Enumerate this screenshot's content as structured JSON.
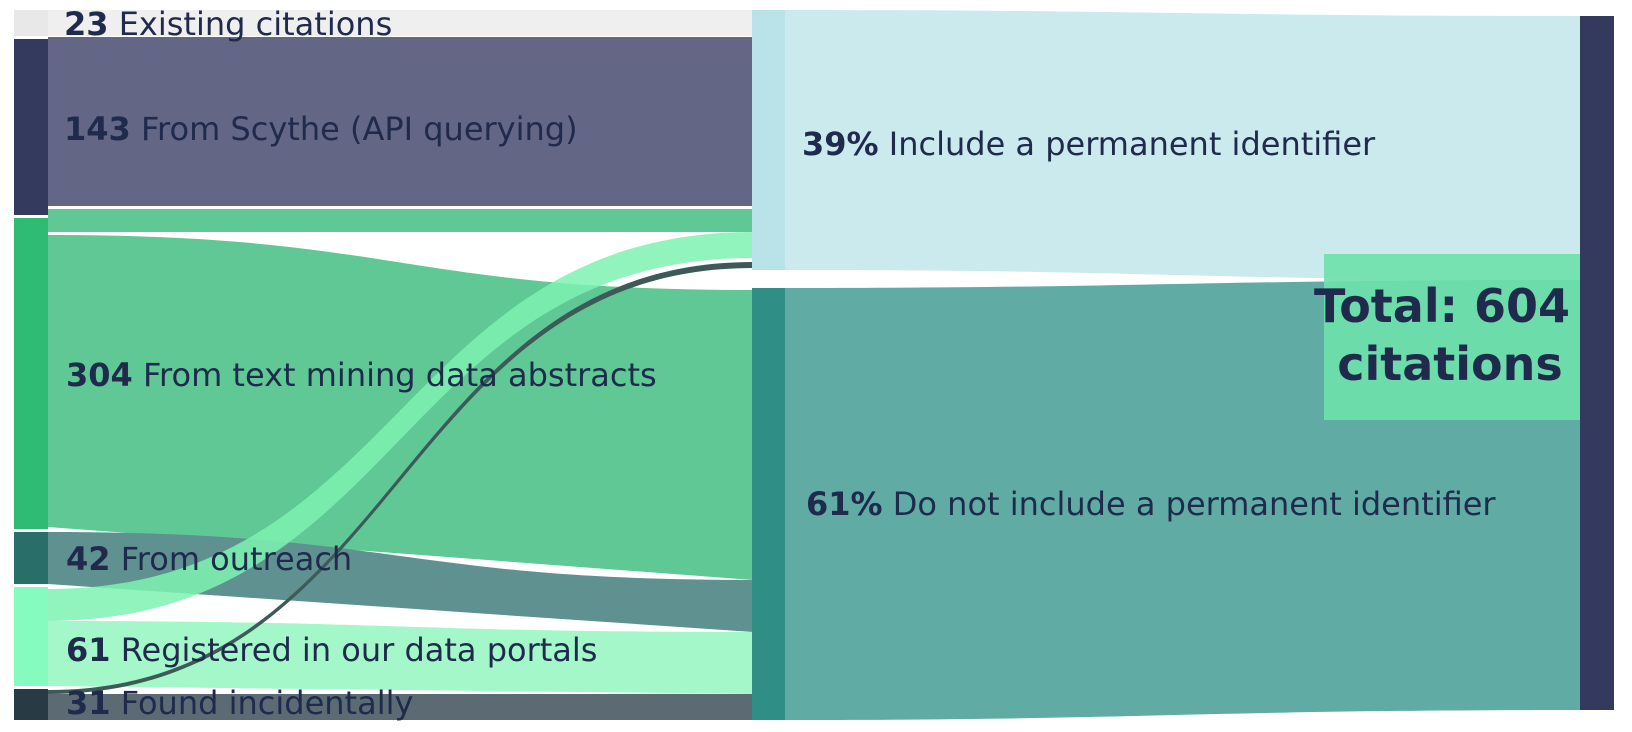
{
  "diagram": {
    "type": "sankey",
    "sources": [
      {
        "id": "existing",
        "count": "23",
        "label": "Existing citations",
        "color": "#e8e8e8",
        "band": "#efefef"
      },
      {
        "id": "scythe",
        "count": "143",
        "label": "From Scythe (API querying)",
        "color": "#333a5e",
        "band": "#636684"
      },
      {
        "id": "textmining",
        "count": "304",
        "label": "From text mining data abstracts",
        "color": "#2fbb74",
        "band": "#5fc895"
      },
      {
        "id": "outreach",
        "count": "42",
        "label": "From outreach",
        "color": "#2a6e6a",
        "band": "#5e918f"
      },
      {
        "id": "portals",
        "count": "61",
        "label": "Registered in our data portals",
        "color": "#86fbbf",
        "band": "#a3f7c8"
      },
      {
        "id": "incidental",
        "count": "31",
        "label": "Found incidentally",
        "color": "#283a44",
        "band": "#5c6a74"
      }
    ],
    "targets": [
      {
        "id": "with_pid",
        "percent": "39%",
        "label": "Include a permanent identifier",
        "color": "#b9e3e8",
        "band": "#cbeaed"
      },
      {
        "id": "without_pid",
        "percent": "61%",
        "label": "Do not include a permanent identifier",
        "color": "#2f8f86",
        "band": "#61aba5"
      }
    ],
    "total": {
      "line1": "Total: 604",
      "line2": "citations",
      "node_color": "#333a5e",
      "box_color": "#6fdfab"
    }
  }
}
